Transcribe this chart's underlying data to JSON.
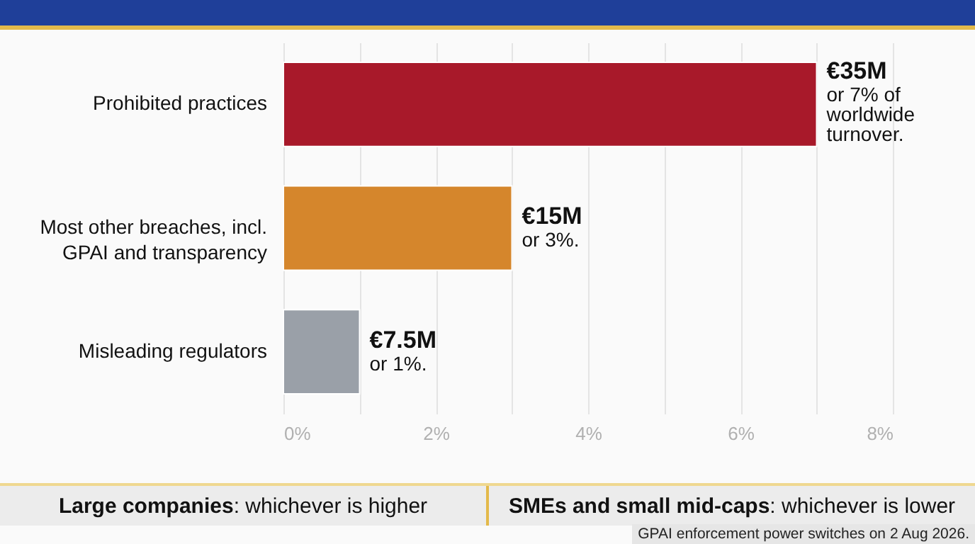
{
  "chart_data": {
    "type": "bar",
    "orientation": "horizontal",
    "categories": [
      "Prohibited practices",
      "Most other breaches, incl. GPAI and transparency",
      "Misleading regulators"
    ],
    "values": [
      7,
      3,
      1
    ],
    "colors": [
      "#a8192a",
      "#d5862c",
      "#9aa0a8"
    ],
    "value_labels": [
      "€35M or 7% of worldwide turnover.",
      "€15M or 3%.",
      "€7.5M or 1%."
    ],
    "xlim": [
      0,
      8
    ],
    "xticks": [
      {
        "value": 0,
        "label": "0%"
      },
      {
        "value": 1,
        "label": null
      },
      {
        "value": 2,
        "label": "2%"
      },
      {
        "value": 3,
        "label": null
      },
      {
        "value": 4,
        "label": "4%"
      },
      {
        "value": 5,
        "label": null
      },
      {
        "value": 6,
        "label": "6%"
      },
      {
        "value": 7,
        "label": null
      },
      {
        "value": 8,
        "label": "8%"
      }
    ],
    "grid": "x",
    "annotations": [
      "Large companies: whichever is higher",
      "SMEs and small mid-caps: whichever is lower",
      "GPAI enforcement power switches on 2 Aug 2026."
    ]
  }
}
